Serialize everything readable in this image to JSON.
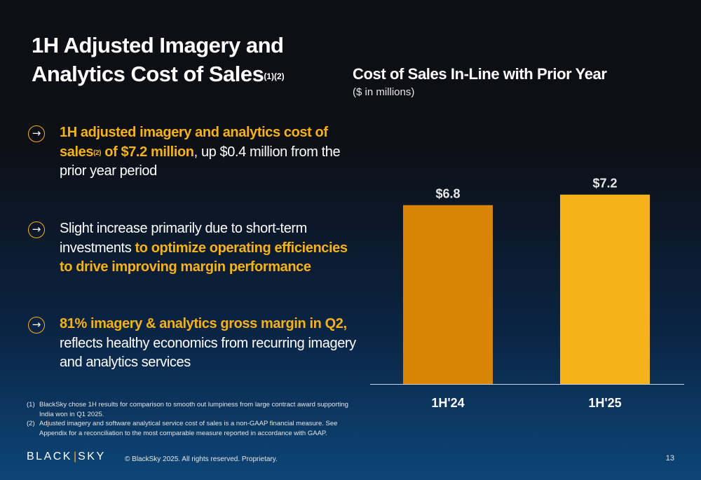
{
  "slide": {
    "title_line1": "1H Adjusted Imagery and",
    "title_line2": "Analytics Cost of Sales",
    "title_sup": "(1)(2)"
  },
  "bullets": [
    {
      "hl1": "1H adjusted imagery and analytics cost of sales",
      "hl1_sup": "(2)",
      "hl2": " of $7.2 million",
      "rest": ", up $0.4 million from the prior year period"
    },
    {
      "pre": "Slight increase primarily due to short-term investments ",
      "hl": "to optimize operating efficiencies to drive improving margin performance"
    },
    {
      "hl": "81% imagery & analytics gross margin in Q2,",
      "rest": " reflects healthy economics from recurring imagery and analytics services"
    }
  ],
  "arrow_glyph": "→",
  "chart_data": {
    "type": "bar",
    "title": "Cost of Sales In-Line with Prior Year",
    "subtitle": "($ in millions)",
    "categories": [
      "1H'24",
      "1H'25"
    ],
    "values": [
      6.8,
      7.2
    ],
    "data_labels": [
      "$6.8",
      "$7.2"
    ],
    "colors": [
      "#d88405",
      "#f6b21b"
    ],
    "ylim": [
      0,
      10.15
    ],
    "grid": false,
    "legend": "none"
  },
  "footnotes": [
    {
      "num": "(1)",
      "text": "BlackSky chose 1H results for comparison to smooth out lumpiness from large contract award supporting India won in Q1 2025."
    },
    {
      "num": "(2)",
      "text": "Adjusted imagery and software analytical service cost of sales is a non-GAAP financial measure. See Appendix for a reconciliation to the most comparable measure reported in accordance with GAAP."
    }
  ],
  "footer": {
    "logo_left": "BLACK",
    "logo_bar": "|",
    "logo_right": "SKY",
    "copyright": "© BlackSky 2025. All rights reserved. Proprietary.",
    "page_number": "13"
  },
  "colors": {
    "accent": "#f6b21b",
    "bar_prior": "#d88405"
  }
}
